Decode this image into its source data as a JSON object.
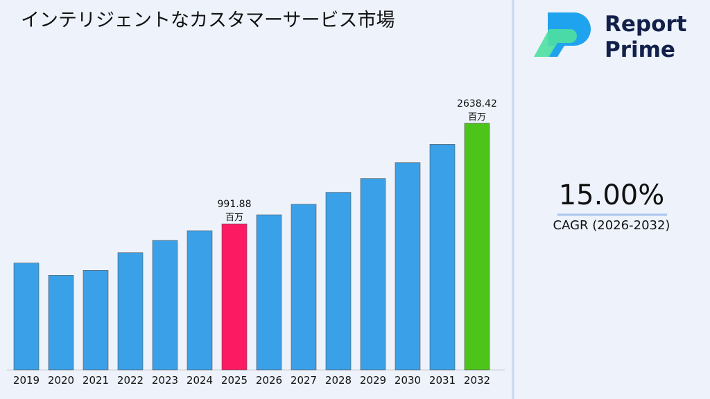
{
  "chart_data": {
    "type": "bar",
    "title": "インテリジェントなカスタマーサービス市場",
    "categories": [
      "2019",
      "2020",
      "2021",
      "2022",
      "2023",
      "2024",
      "2025",
      "2026",
      "2027",
      "2028",
      "2029",
      "2030",
      "2031",
      "2032"
    ],
    "values": [
      350,
      150,
      230,
      520,
      720,
      880,
      991.88,
      1140.66,
      1311.76,
      1508.52,
      1734.8,
      1995.0,
      2294.3,
      2638.42
    ],
    "value_labels": [
      null,
      null,
      null,
      null,
      null,
      null,
      "991.88",
      null,
      null,
      null,
      null,
      null,
      null,
      "2638.42"
    ],
    "unit": "百万",
    "colors": [
      "#3aa0e8",
      "#3aa0e8",
      "#3aa0e8",
      "#3aa0e8",
      "#3aa0e8",
      "#3aa0e8",
      "#fc1a63",
      "#3aa0e8",
      "#3aa0e8",
      "#3aa0e8",
      "#3aa0e8",
      "#3aa0e8",
      "#3aa0e8",
      "#4cc41a"
    ],
    "ylim": [
      -1400,
      2700
    ]
  },
  "panel": {
    "brand": [
      "Report",
      "Prime"
    ],
    "cagr": "15.00%",
    "cagr_label": "CAGR (2026-2032)"
  }
}
